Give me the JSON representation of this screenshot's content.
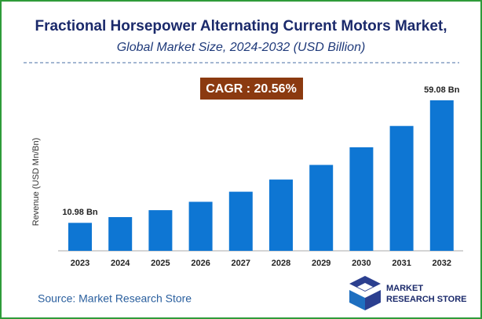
{
  "chart_data": {
    "type": "bar",
    "title": "Fractional Horsepower Alternating Current Motors Market,",
    "subtitle": "Global Market Size, 2024-2032 (USD Billion)",
    "annotation": "CAGR : 20.56%",
    "y_label": "Revenue (USD Mn/Bn)",
    "source": "Source: Market Research Store",
    "logo": [
      "MARKET",
      "RESEARCH STORE"
    ],
    "categories": [
      "2023",
      "2024",
      "2025",
      "2026",
      "2027",
      "2028",
      "2029",
      "2030",
      "2031",
      "2032"
    ],
    "values": [
      10.98,
      13.24,
      15.96,
      19.24,
      23.2,
      27.97,
      33.72,
      40.65,
      49.01,
      59.08
    ],
    "value_labels": [
      "10.98 Bn",
      null,
      null,
      null,
      null,
      null,
      null,
      null,
      null,
      "59.08 Bn"
    ],
    "color": "#0e76d3"
  }
}
